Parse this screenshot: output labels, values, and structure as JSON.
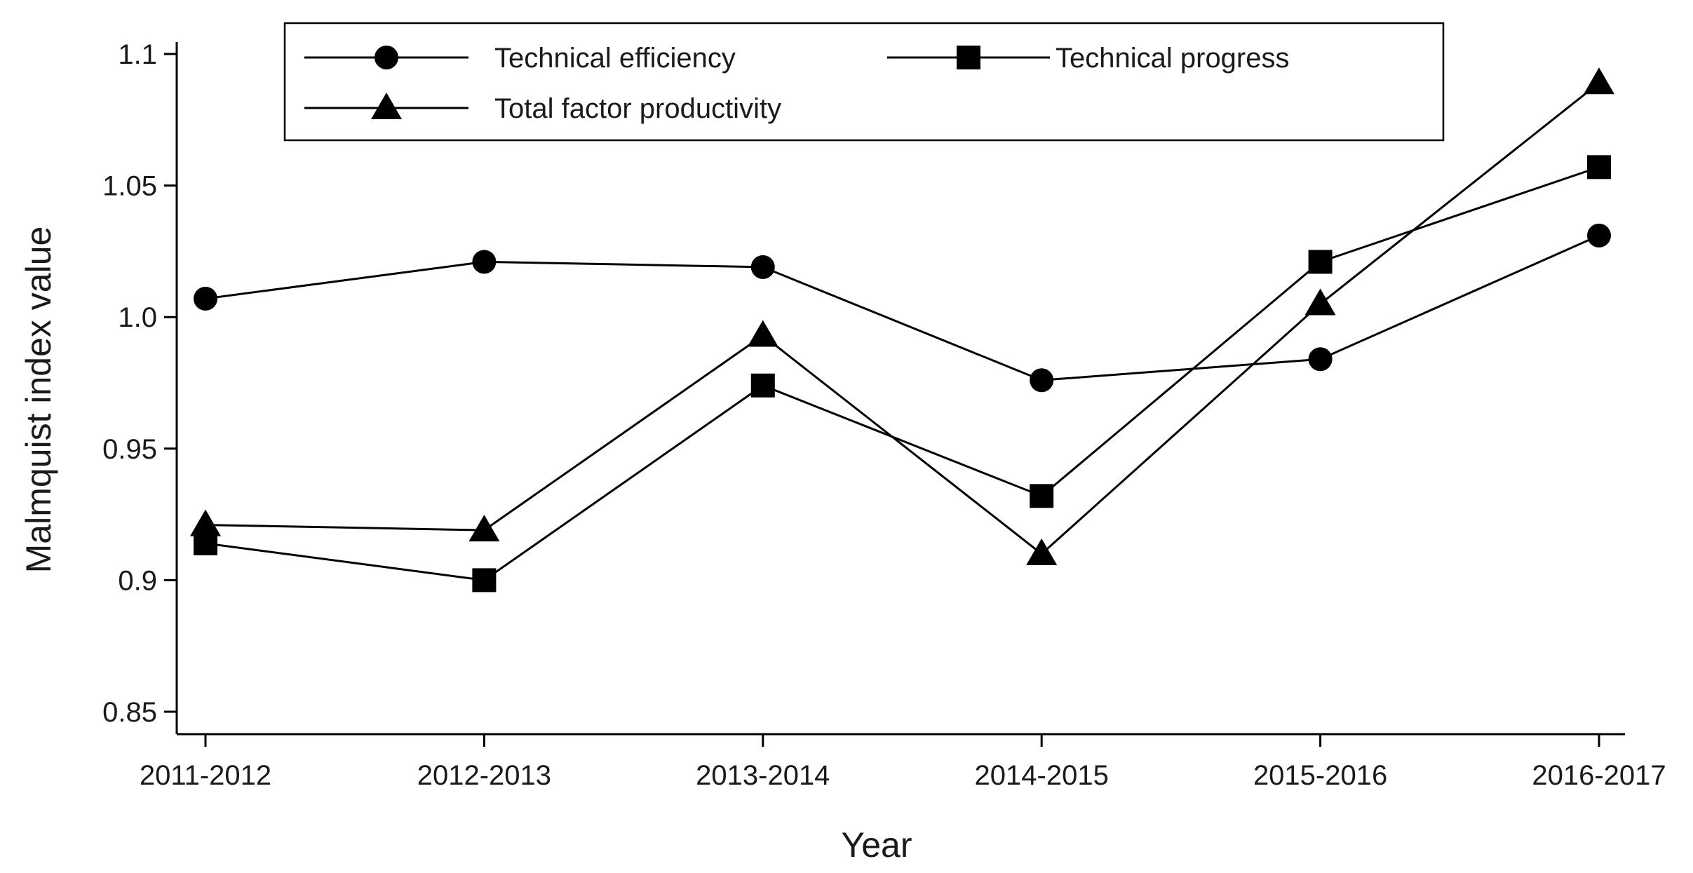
{
  "chart_data": {
    "type": "line",
    "title": "",
    "xlabel": "Year",
    "ylabel": "Malmquist index value",
    "categories": [
      "2011-2012",
      "2012-2013",
      "2013-2014",
      "2014-2015",
      "2015-2016",
      "2016-2017"
    ],
    "ylim": [
      0.84,
      1.115
    ],
    "yticks": [
      0.85,
      0.9,
      0.95,
      1.0,
      1.05,
      1.1
    ],
    "ytick_labels": [
      "0.85",
      "0.9",
      "0.95",
      "1.0",
      "1.05",
      "1.1"
    ],
    "grid": false,
    "legend_position": "top",
    "series": [
      {
        "name": "Technical efficiency",
        "marker": "circle",
        "color": "#000000",
        "values": [
          1.007,
          1.021,
          1.019,
          0.976,
          0.984,
          1.031
        ]
      },
      {
        "name": "Technical progress",
        "marker": "square",
        "color": "#000000",
        "values": [
          0.914,
          0.9,
          0.974,
          0.932,
          1.021,
          1.057
        ]
      },
      {
        "name": "Total factor productivity",
        "marker": "triangle",
        "color": "#000000",
        "values": [
          0.921,
          0.919,
          0.993,
          0.91,
          1.005,
          1.089
        ]
      }
    ]
  }
}
